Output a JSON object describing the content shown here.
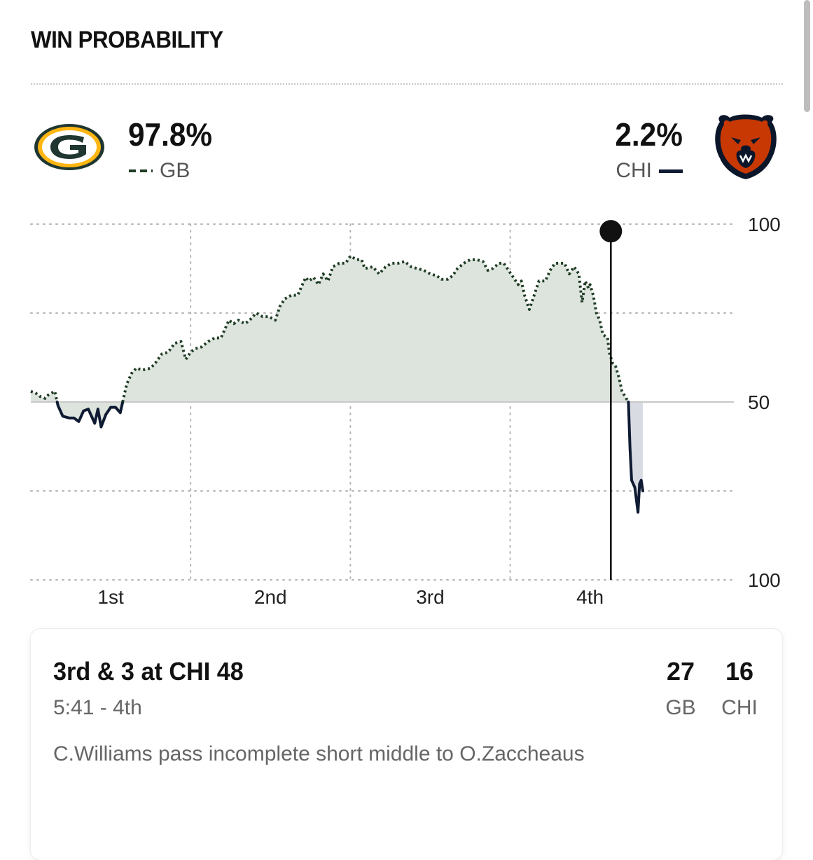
{
  "header": {
    "title": "WIN PROBABILITY"
  },
  "teams": {
    "home": {
      "abbr": "GB",
      "pct": "97.8%",
      "logo_icon": "packers-g-logo-icon",
      "color": "#1f3d24"
    },
    "away": {
      "abbr": "CHI",
      "pct": "2.2%",
      "logo_icon": "bears-head-logo-icon",
      "color": "#0f1b33"
    }
  },
  "chart_data": {
    "type": "line",
    "y_tick_labels": [
      "100",
      "50",
      "100"
    ],
    "x_tick_labels": [
      "1st",
      "2nd",
      "3rd",
      "4th"
    ],
    "ylim": [
      0,
      100
    ],
    "xlim": [
      0,
      4.4
    ],
    "baseline": 50,
    "grid": true,
    "current_play_x": 3.63,
    "current_play_y": 98,
    "x_tick_positions": [
      0.5,
      1.5,
      2.5,
      3.5
    ],
    "series": [
      {
        "name": "GB",
        "line_style": "dotted",
        "color": "#1f3d24",
        "points": [
          [
            0,
            53
          ],
          [
            0.03,
            52.5
          ],
          [
            0.06,
            51.5
          ],
          [
            0.09,
            51
          ],
          [
            0.11,
            52
          ],
          [
            0.15,
            53
          ],
          [
            0.17,
            49
          ],
          [
            0.2,
            46
          ],
          [
            0.24,
            45.5
          ],
          [
            0.27,
            45.5
          ],
          [
            0.3,
            44.5
          ],
          [
            0.33,
            47.5
          ],
          [
            0.36,
            48
          ],
          [
            0.4,
            44
          ],
          [
            0.42,
            48
          ],
          [
            0.44,
            43
          ],
          [
            0.47,
            46.5
          ],
          [
            0.5,
            48.5
          ],
          [
            0.53,
            48.5
          ],
          [
            0.56,
            47
          ],
          [
            0.58,
            51
          ],
          [
            0.6,
            55
          ],
          [
            0.63,
            58
          ],
          [
            0.66,
            59.5
          ],
          [
            0.7,
            59
          ],
          [
            0.75,
            59.5
          ],
          [
            0.78,
            61
          ],
          [
            0.82,
            63.5
          ],
          [
            0.86,
            64
          ],
          [
            0.9,
            66.5
          ],
          [
            0.94,
            67
          ],
          [
            0.97,
            62
          ],
          [
            1.0,
            64
          ],
          [
            1.03,
            65
          ],
          [
            1.07,
            65.5
          ],
          [
            1.11,
            67
          ],
          [
            1.15,
            68
          ],
          [
            1.19,
            68
          ],
          [
            1.24,
            73
          ],
          [
            1.27,
            72
          ],
          [
            1.3,
            73
          ],
          [
            1.34,
            72
          ],
          [
            1.37,
            73
          ],
          [
            1.41,
            75
          ],
          [
            1.45,
            74
          ],
          [
            1.49,
            74
          ],
          [
            1.53,
            73
          ],
          [
            1.56,
            77
          ],
          [
            1.59,
            79
          ],
          [
            1.63,
            80
          ],
          [
            1.67,
            80
          ],
          [
            1.7,
            83
          ],
          [
            1.72,
            85
          ],
          [
            1.74,
            84
          ],
          [
            1.77,
            85
          ],
          [
            1.8,
            83
          ],
          [
            1.83,
            86
          ],
          [
            1.86,
            84
          ],
          [
            1.89,
            88
          ],
          [
            1.93,
            89
          ],
          [
            1.97,
            89
          ],
          [
            2.0,
            91
          ],
          [
            2.04,
            90
          ],
          [
            2.07,
            90
          ],
          [
            2.09,
            87.5
          ],
          [
            2.14,
            88
          ],
          [
            2.18,
            86
          ],
          [
            2.22,
            88
          ],
          [
            2.26,
            89
          ],
          [
            2.3,
            89
          ],
          [
            2.34,
            89.5
          ],
          [
            2.38,
            88
          ],
          [
            2.42,
            87.5
          ],
          [
            2.46,
            87
          ],
          [
            2.5,
            86
          ],
          [
            2.54,
            85.5
          ],
          [
            2.57,
            84.5
          ],
          [
            2.61,
            84.5
          ],
          [
            2.64,
            85.5
          ],
          [
            2.67,
            87.5
          ],
          [
            2.71,
            89
          ],
          [
            2.75,
            90
          ],
          [
            2.79,
            90
          ],
          [
            2.83,
            89.5
          ],
          [
            2.86,
            87
          ],
          [
            2.89,
            87.5
          ],
          [
            2.93,
            89
          ],
          [
            2.96,
            89
          ],
          [
            2.99,
            87
          ],
          [
            3.02,
            85
          ],
          [
            3.05,
            83
          ],
          [
            3.07,
            84
          ],
          [
            3.09,
            80
          ],
          [
            3.12,
            76
          ],
          [
            3.15,
            80
          ],
          [
            3.18,
            84
          ],
          [
            3.22,
            84
          ],
          [
            3.25,
            87
          ],
          [
            3.28,
            89
          ],
          [
            3.31,
            89
          ],
          [
            3.34,
            89
          ],
          [
            3.37,
            86
          ],
          [
            3.4,
            88
          ],
          [
            3.43,
            86
          ],
          [
            3.45,
            78
          ],
          [
            3.47,
            84
          ],
          [
            3.49,
            82
          ],
          [
            3.5,
            83
          ],
          [
            3.52,
            80
          ],
          [
            3.54,
            75
          ],
          [
            3.56,
            73
          ],
          [
            3.58,
            69
          ],
          [
            3.61,
            68
          ],
          [
            3.62,
            64
          ],
          [
            3.64,
            61
          ],
          [
            3.66,
            60
          ],
          [
            3.68,
            57
          ],
          [
            3.7,
            53
          ],
          [
            3.74,
            50
          ]
        ]
      },
      {
        "name": "CHI",
        "line_style": "solid",
        "color": "#0f1b33",
        "points": [
          [
            3.74,
            50
          ],
          [
            3.75,
            37
          ],
          [
            3.76,
            28
          ],
          [
            3.78,
            26
          ],
          [
            3.8,
            19
          ],
          [
            3.81,
            27
          ],
          [
            3.82,
            28
          ],
          [
            3.83,
            25
          ]
        ]
      }
    ]
  },
  "play": {
    "down_distance": "3rd & 3 at CHI 48",
    "clock": "5:41 - 4th",
    "description": "C.Williams pass incomplete short middle to O.Zaccheaus",
    "score_gb": "27",
    "score_chi": "16",
    "abbr_gb": "GB",
    "abbr_chi": "CHI"
  }
}
